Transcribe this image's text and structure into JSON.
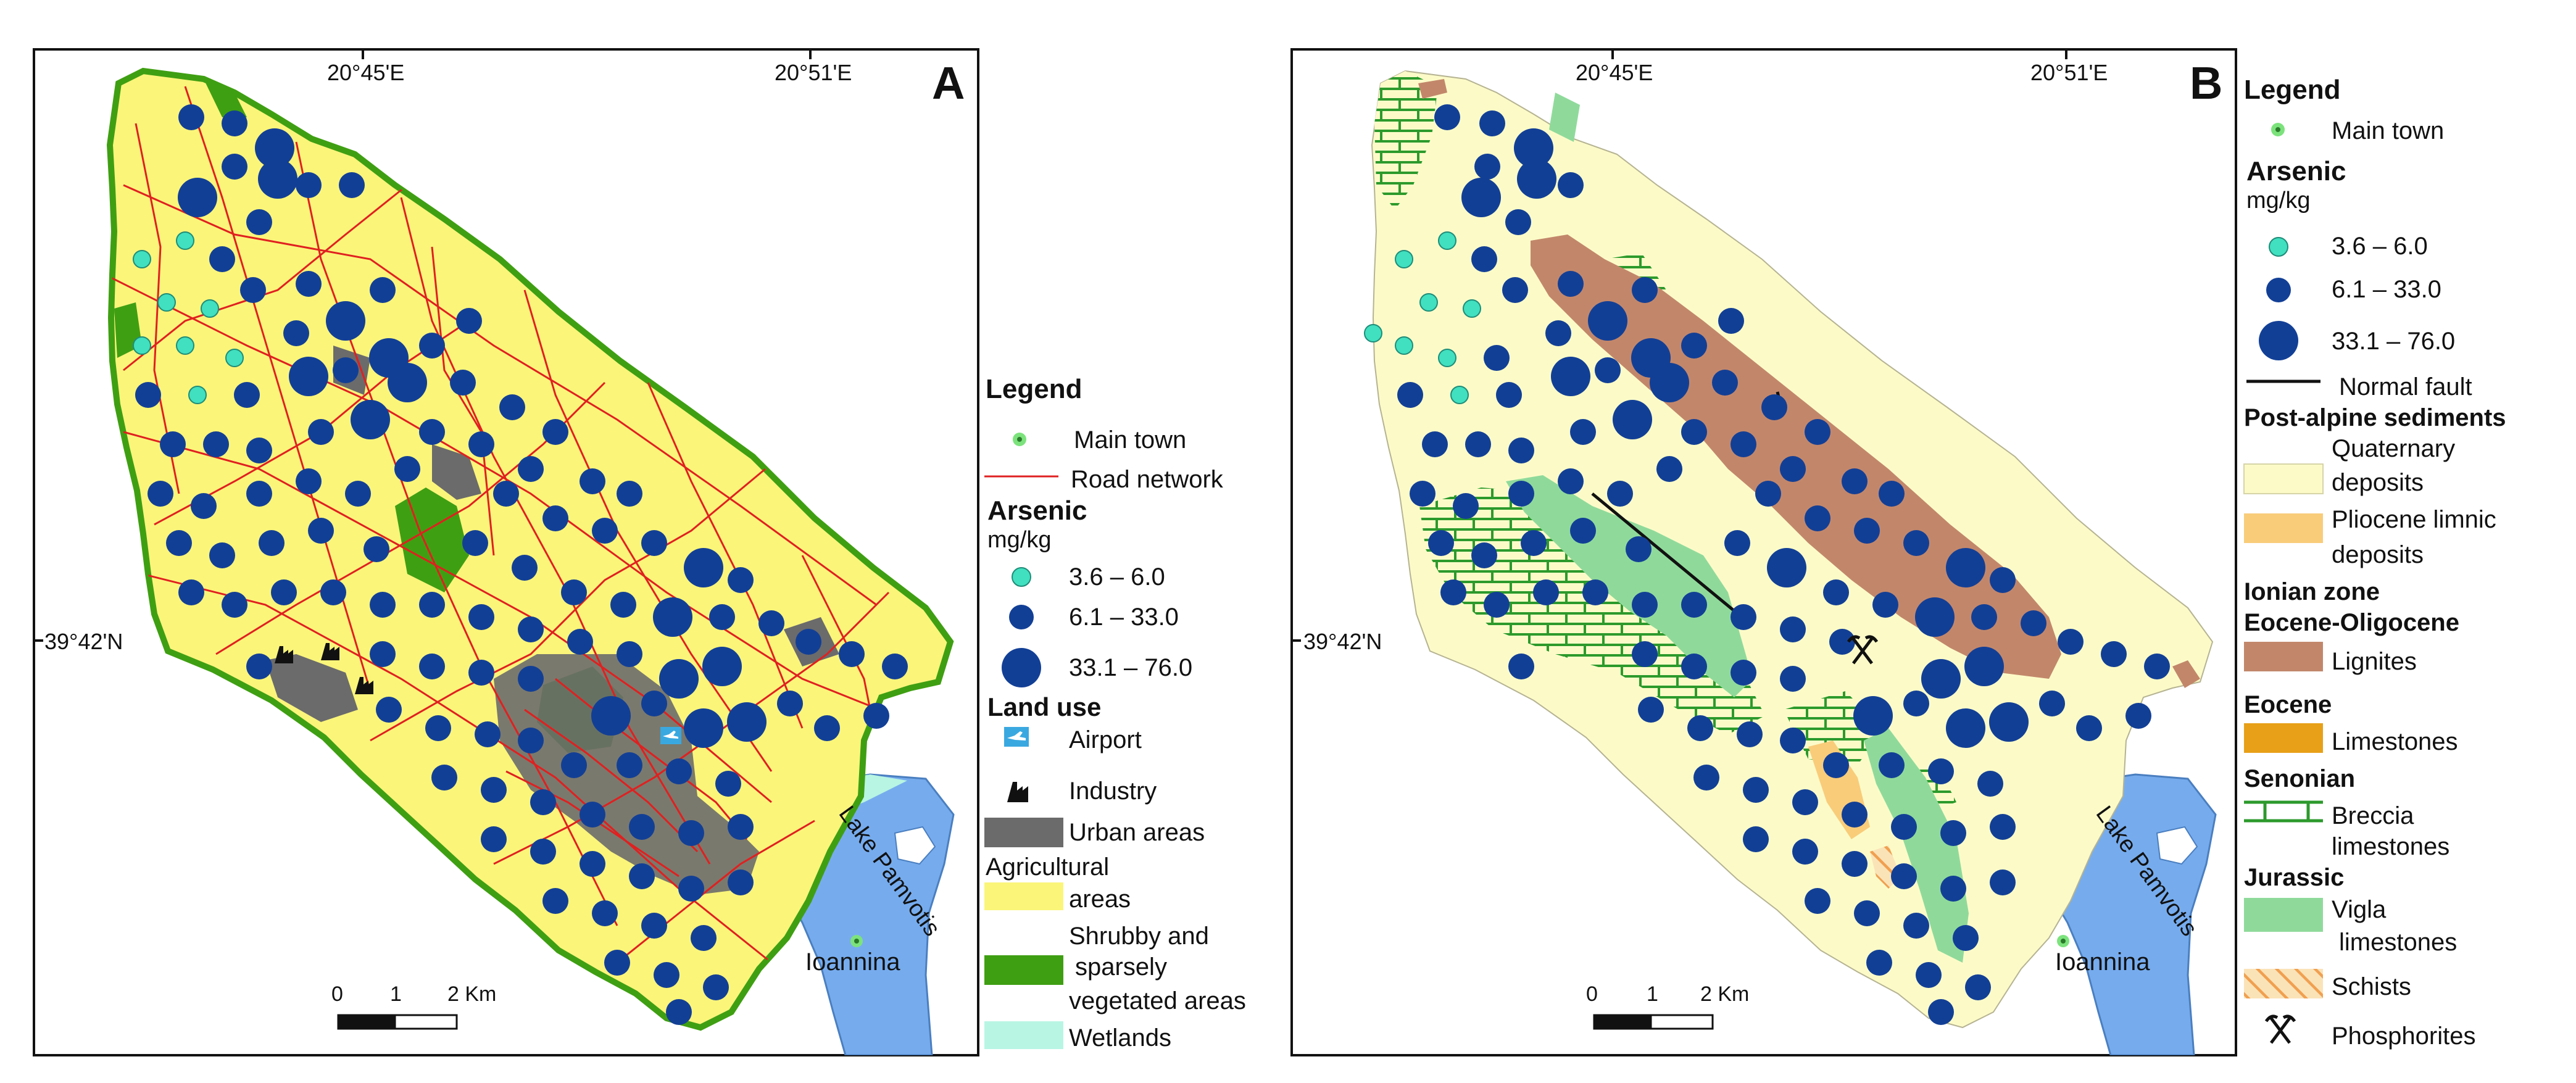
{
  "panel_a": {
    "letter": "A",
    "lon_ticks": [
      "20°45'E",
      "20°51'E"
    ],
    "lat_tick": "39°42'N",
    "lake_label": "Lake Pamvotis",
    "town_label": "Ioannina",
    "scale": {
      "zero": "0",
      "one": "1",
      "two": "2 Km"
    },
    "legend": {
      "title": "Legend",
      "main_town": "Main town",
      "road_network": "Road network",
      "arsenic_title": "Arsenic",
      "arsenic_unit": "mg/kg",
      "arsenic_classes": [
        "3.6 – 6.0",
        "6.1 – 33.0",
        "33.1 – 76.0"
      ],
      "land_use_title": "Land use",
      "airport": "Airport",
      "industry": "Industry",
      "urban": "Urban areas",
      "agricultural_1": "Agricultural",
      "agricultural_2": "areas",
      "shrubby_1": "Shrubby and",
      "shrubby_2": "sparsely",
      "shrubby_3": "vegetated areas",
      "wetlands": "Wetlands"
    }
  },
  "panel_b": {
    "letter": "B",
    "lon_ticks": [
      "20°45'E",
      "20°51'E"
    ],
    "lat_tick": "39°42'N",
    "lake_label": "Lake Pamvotis",
    "town_label": "Ioannina",
    "scale": {
      "zero": "0",
      "one": "1",
      "two": "2 Km"
    },
    "legend": {
      "title": "Legend",
      "main_town": "Main town",
      "arsenic_title": "Arsenic",
      "arsenic_unit": "mg/kg",
      "arsenic_classes": [
        "3.6 – 6.0",
        "6.1 – 33.0",
        "33.1 – 76.0"
      ],
      "normal_fault": "Normal fault",
      "post_alpine": "Post-alpine sediments",
      "quaternary_1": "Quaternary",
      "quaternary_2": "deposits",
      "pliocene_1": "Pliocene limnic",
      "pliocene_2": "deposits",
      "ionian_zone": "Ionian zone",
      "eocene_oligocene": "Eocene-Oligocene",
      "lignites": "Lignites",
      "eocene": "Eocene",
      "limestones": "Limestones",
      "senonian": "Senonian",
      "breccia_1": "Breccia",
      "breccia_2": "limestones",
      "jurassic": "Jurassic",
      "vigla_1": "Vigla",
      "vigla_2": "limestones",
      "schists": "Schists",
      "phosphorites": "Phosphorites"
    }
  },
  "colors": {
    "arsenic_low": "#40e0c0",
    "arsenic_mid": "#123f96",
    "arsenic_high": "#123f96",
    "road": "#e02020",
    "urban": "#6b6b6b",
    "agricultural": "#fbf57a",
    "shrubby": "#3f9f12",
    "wetlands": "#b8f5e3",
    "lake": "#76acee",
    "quaternary": "#fcfbc8",
    "pliocene": "#f9cc7a",
    "lignites": "#c2876b",
    "limestones": "#e8a018",
    "breccia": "#2c9a2c",
    "vigla": "#8fda9b",
    "schists": "#f5a45a"
  }
}
